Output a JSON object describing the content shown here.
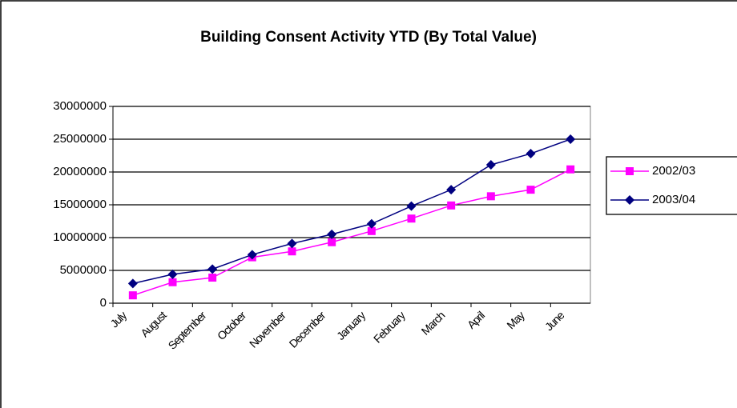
{
  "chart_data": {
    "type": "line",
    "title": "Building Consent Activity YTD (By Total Value)",
    "categories": [
      "July",
      "August",
      "September",
      "October",
      "November",
      "December",
      "January",
      "February",
      "March",
      "April",
      "May",
      "June"
    ],
    "series": [
      {
        "name": "2002/03",
        "color": "#ff00ff",
        "marker": "square",
        "values": [
          1200000,
          3200000,
          3900000,
          7000000,
          7900000,
          9300000,
          11000000,
          12900000,
          14900000,
          16300000,
          17300000,
          20400000
        ]
      },
      {
        "name": "2003/04",
        "color": "#000080",
        "marker": "diamond",
        "values": [
          3000000,
          4400000,
          5200000,
          7400000,
          9100000,
          10500000,
          12100000,
          14800000,
          17300000,
          21100000,
          22800000,
          25000000
        ]
      }
    ],
    "ylim": [
      0,
      30000000
    ],
    "yticks": [
      0,
      5000000,
      10000000,
      15000000,
      20000000,
      25000000,
      30000000
    ],
    "grid": true,
    "legend": "right"
  }
}
